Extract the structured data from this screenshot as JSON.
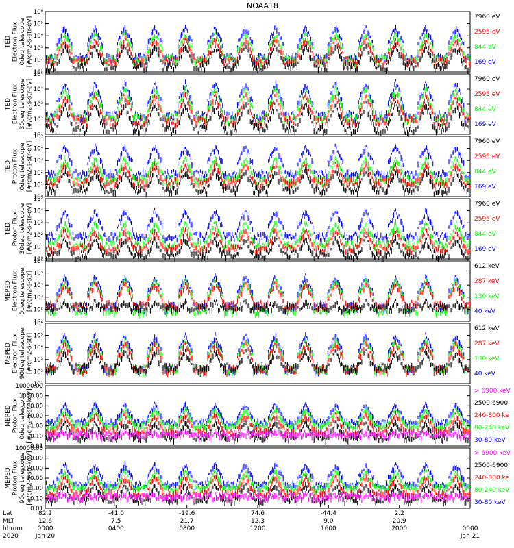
{
  "title": "NOAA18",
  "colors": {
    "black": "#000000",
    "red": "#ff0000",
    "green": "#00ff00",
    "blue": "#0000ff",
    "magenta": "#ff00ff"
  },
  "panels": [
    {
      "ylabel": [
        "TED",
        "Electron Flux",
        "0deg telescope",
        "[#/cm2-s-str-eV]"
      ],
      "yticks": [
        "10¹",
        "10²",
        "10³",
        "10⁴",
        "10⁵",
        "10⁶"
      ],
      "legend": [
        {
          "text": "7960 eV",
          "color": "#000000"
        },
        {
          "text": "2595 eV",
          "color": "#ff0000"
        },
        {
          "text": "844 eV",
          "color": "#00ff00"
        },
        {
          "text": "169 eV",
          "color": "#0000ff"
        }
      ]
    },
    {
      "ylabel": [
        "TED",
        "Electron Flux",
        "30deg telescope",
        "[#/cm2-s-str-eV]"
      ],
      "yticks": [
        "10¹",
        "10²",
        "10³",
        "10⁴",
        "10⁵"
      ],
      "legend": [
        {
          "text": "7960 eV",
          "color": "#000000"
        },
        {
          "text": "2595 eV",
          "color": "#ff0000"
        },
        {
          "text": "844 eV",
          "color": "#00ff00"
        },
        {
          "text": "169 eV",
          "color": "#0000ff"
        }
      ]
    },
    {
      "ylabel": [
        "TED",
        "Proton Flux",
        "0deg telescope",
        "[#/cm2-s-str-eV]"
      ],
      "yticks": [
        "10⁰",
        "10¹",
        "10²",
        "10³",
        "10⁴",
        "10⁵"
      ],
      "legend": [
        {
          "text": "7960 eV",
          "color": "#000000"
        },
        {
          "text": "2595 eV",
          "color": "#ff0000"
        },
        {
          "text": "844 eV",
          "color": "#00ff00"
        },
        {
          "text": "169 eV",
          "color": "#0000ff"
        }
      ]
    },
    {
      "ylabel": [
        "TED",
        "Proton Flux",
        "30deg telescope",
        "[#/cm2-s-str-eV]"
      ],
      "yticks": [
        "10⁰",
        "10¹",
        "10²",
        "10³",
        "10⁴",
        "10⁵"
      ],
      "legend": [
        {
          "text": "7960 eV",
          "color": "#000000"
        },
        {
          "text": "2595 eV",
          "color": "#ff0000"
        },
        {
          "text": "844 eV",
          "color": "#00ff00"
        },
        {
          "text": "169 eV",
          "color": "#0000ff"
        }
      ]
    },
    {
      "ylabel": [
        "MEPED",
        "Electron Flux",
        "0deg telescope",
        "[#/cm2-s-str]"
      ],
      "yticks": [
        "10¹",
        "10²",
        "10³",
        "10⁴",
        "10⁵",
        "10⁶"
      ],
      "legend": [
        {
          "text": "612 keV",
          "color": "#000000"
        },
        {
          "text": "287 keV",
          "color": "#ff0000"
        },
        {
          "text": "130 keV",
          "color": "#00ff00"
        },
        {
          "text": "40 keV",
          "color": "#0000ff"
        }
      ]
    },
    {
      "ylabel": [
        "MEPED",
        "Electron Flux",
        "90deg telescope",
        "[#/cm2-s-str]"
      ],
      "yticks": [
        "10¹",
        "10²",
        "10³",
        "10⁴",
        "10⁵",
        "10⁶"
      ],
      "legend": [
        {
          "text": "612 keV",
          "color": "#000000"
        },
        {
          "text": "287 keV",
          "color": "#ff0000"
        },
        {
          "text": "130 keV",
          "color": "#00ff00"
        },
        {
          "text": "40 keV",
          "color": "#0000ff"
        }
      ]
    },
    {
      "ylabel": [
        "MEPED",
        "Proton Flux",
        "0deg telescope",
        "[#/cm2-s-str-keV]"
      ],
      "yticks": [
        "0.01",
        "0.10",
        "1.00",
        "10.00",
        "100.00",
        "1000.00",
        "10000.00"
      ],
      "legend": [
        {
          "text": "> 6900 keV",
          "color": "#ff00ff"
        },
        {
          "text": "2500-6900",
          "color": "#000000"
        },
        {
          "text": "240-800 ke",
          "color": "#ff0000"
        },
        {
          "text": "80-240 keV",
          "color": "#00ff00"
        },
        {
          "text": "30-80 keV",
          "color": "#0000ff"
        }
      ]
    },
    {
      "ylabel": [
        "MEPED",
        "Proton Flux",
        "90deg telescope",
        "[#/cm2-s-str-keV]"
      ],
      "yticks": [
        "0.01",
        "0.10",
        "1.00",
        "10.00",
        "100.00",
        "1000.00",
        "10000.00"
      ],
      "legend": [
        {
          "text": "> 6900 keV",
          "color": "#ff00ff"
        },
        {
          "text": "2500-6900",
          "color": "#000000"
        },
        {
          "text": "240-800 ke",
          "color": "#ff0000"
        },
        {
          "text": "80-240 keV",
          "color": "#00ff00"
        },
        {
          "text": "30-80 keV",
          "color": "#0000ff"
        }
      ]
    }
  ],
  "xaxis": {
    "row_labels": [
      "Lat",
      "MLT",
      "hhmm",
      "2020"
    ],
    "ticks": [
      {
        "lat": "82.2",
        "mlt": "12.6",
        "time": "0000",
        "date": "Jan 20"
      },
      {
        "lat": "-41.0",
        "mlt": "7.5",
        "time": "0400",
        "date": ""
      },
      {
        "lat": "-19.6",
        "mlt": "21.7",
        "time": "0800",
        "date": ""
      },
      {
        "lat": "74.6",
        "mlt": "12.3",
        "time": "1200",
        "date": ""
      },
      {
        "lat": "-44.4",
        "mlt": "9.0",
        "time": "1600",
        "date": ""
      },
      {
        "lat": "2.2",
        "mlt": "20.9",
        "time": "2000",
        "date": ""
      },
      {
        "lat": "",
        "mlt": "",
        "time": "0000",
        "date": "Jan 21"
      }
    ]
  },
  "chart_data": {
    "type": "line",
    "title": "NOAA18",
    "x_range_hours": [
      0,
      24
    ],
    "x_ticks_hours": [
      0,
      4,
      8,
      12,
      16,
      20,
      24
    ],
    "log_y": true,
    "panels": [
      {
        "name": "TED Electron Flux 0deg telescope",
        "ylim": [
          10,
          1000000
        ],
        "series": [
          {
            "name": "7960 eV",
            "typical": 40,
            "peak": 3000
          },
          {
            "name": "2595 eV",
            "typical": 100,
            "peak": 10000
          },
          {
            "name": "844 eV",
            "typical": 150,
            "peak": 30000
          },
          {
            "name": "169 eV",
            "typical": 200,
            "peak": 100000
          }
        ]
      },
      {
        "name": "TED Electron Flux 30deg telescope",
        "ylim": [
          10,
          100000
        ],
        "series": [
          {
            "name": "7960 eV",
            "typical": 30,
            "peak": 2000
          },
          {
            "name": "2595 eV",
            "typical": 100,
            "peak": 8000
          },
          {
            "name": "844 eV",
            "typical": 150,
            "peak": 20000
          },
          {
            "name": "169 eV",
            "typical": 200,
            "peak": 50000
          }
        ]
      },
      {
        "name": "TED Proton Flux 0deg telescope",
        "ylim": [
          1,
          100000
        ],
        "series": [
          {
            "name": "7960 eV",
            "typical": 5,
            "peak": 300
          },
          {
            "name": "2595 eV",
            "typical": 20,
            "peak": 1000
          },
          {
            "name": "844 eV",
            "typical": 30,
            "peak": 3000
          },
          {
            "name": "169 eV",
            "typical": 100,
            "peak": 30000
          }
        ]
      },
      {
        "name": "TED Proton Flux 30deg telescope",
        "ylim": [
          1,
          100000
        ],
        "series": [
          {
            "name": "7960 eV",
            "typical": 3,
            "peak": 100
          },
          {
            "name": "2595 eV",
            "typical": 10,
            "peak": 500
          },
          {
            "name": "844 eV",
            "typical": 20,
            "peak": 2000
          },
          {
            "name": "169 eV",
            "typical": 100,
            "peak": 20000
          }
        ]
      },
      {
        "name": "MEPED Electron Flux 0deg telescope",
        "ylim": [
          10,
          1000000
        ],
        "series": [
          {
            "name": "612 keV",
            "typical": 200,
            "peak": 1000
          },
          {
            "name": "287 keV",
            "typical": 300,
            "peak": 30000
          },
          {
            "name": "130 keV",
            "typical": 100,
            "peak": 50000
          },
          {
            "name": "40 keV",
            "typical": 200,
            "peak": 100000
          }
        ]
      },
      {
        "name": "MEPED Electron Flux 90deg telescope",
        "ylim": [
          10,
          1000000
        ],
        "series": [
          {
            "name": "612 keV",
            "typical": 300,
            "peak": 10000
          },
          {
            "name": "287 keV",
            "typical": 200,
            "peak": 50000
          },
          {
            "name": "130 keV",
            "typical": 200,
            "peak": 80000
          },
          {
            "name": "40 keV",
            "typical": 200,
            "peak": 200000
          }
        ]
      },
      {
        "name": "MEPED Proton Flux 0deg telescope",
        "ylim": [
          0.01,
          10000
        ],
        "series": [
          {
            "name": "> 6900 keV",
            "typical": 0.2,
            "peak": 0.5
          },
          {
            "name": "2500-6900",
            "typical": 0.1,
            "peak": 5
          },
          {
            "name": "240-800 ke",
            "typical": 0.4,
            "peak": 30
          },
          {
            "name": "80-240 keV",
            "typical": 1.5,
            "peak": 100
          },
          {
            "name": "30-80 keV",
            "typical": 3,
            "peak": 300
          }
        ]
      },
      {
        "name": "MEPED Proton Flux 90deg telescope",
        "ylim": [
          0.01,
          10000
        ],
        "series": [
          {
            "name": "> 6900 keV",
            "typical": 0.2,
            "peak": 0.5
          },
          {
            "name": "2500-6900",
            "typical": 0.1,
            "peak": 5
          },
          {
            "name": "240-800 ke",
            "typical": 0.4,
            "peak": 30
          },
          {
            "name": "80-240 keV",
            "typical": 1.5,
            "peak": 100
          },
          {
            "name": "30-80 keV",
            "typical": 3,
            "peak": 500
          }
        ]
      }
    ]
  }
}
